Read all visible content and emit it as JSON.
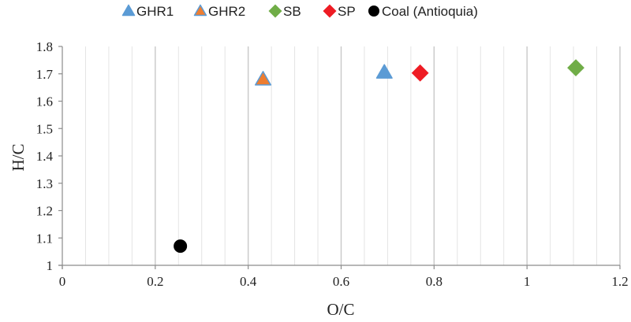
{
  "chart_data": {
    "type": "scatter",
    "title": "",
    "xlabel": "O/C",
    "ylabel": "H/C",
    "xlim": [
      0,
      1.2
    ],
    "ylim": [
      1,
      1.8
    ],
    "x_ticks": [
      "0",
      "0.2",
      "0.4",
      "0.6",
      "0.8",
      "1",
      "1.2"
    ],
    "y_ticks": [
      "1",
      "1.1",
      "1.2",
      "1.3",
      "1.4",
      "1.5",
      "1.6",
      "1.7",
      "1.8"
    ],
    "legend_position": "top",
    "series": [
      {
        "name": "GHR1",
        "marker": "triangle",
        "color": "#5b9bd5",
        "edge": "#5b9bd5",
        "points": [
          {
            "x": 0.693,
            "y": 1.705
          }
        ]
      },
      {
        "name": "GHR2",
        "marker": "triangle",
        "color": "#ed7d31",
        "edge": "#5b9bd5",
        "points": [
          {
            "x": 0.432,
            "y": 1.68
          }
        ]
      },
      {
        "name": "SB",
        "marker": "diamond",
        "color": "#70ad47",
        "edge": "#70ad47",
        "points": [
          {
            "x": 1.105,
            "y": 1.722
          }
        ]
      },
      {
        "name": "SP",
        "marker": "diamond",
        "color": "#ee1c24",
        "edge": "#ee1c24",
        "points": [
          {
            "x": 0.77,
            "y": 1.703
          }
        ]
      },
      {
        "name": "Coal (Antioquia)",
        "marker": "circle",
        "color": "#000000",
        "edge": "#000000",
        "points": [
          {
            "x": 0.254,
            "y": 1.07
          }
        ]
      }
    ]
  }
}
